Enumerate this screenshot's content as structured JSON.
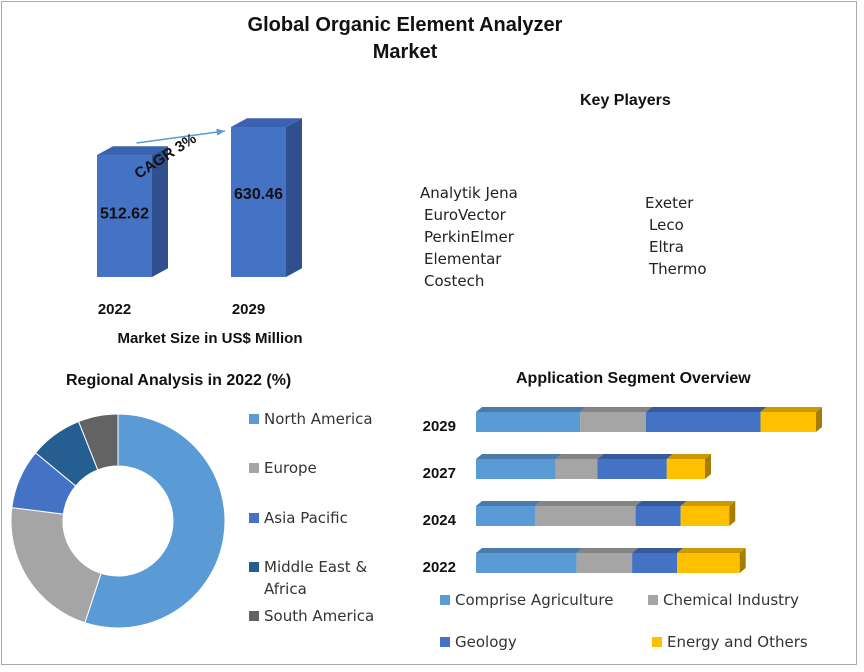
{
  "title": "Global Organic Element Analyzer Market",
  "title_line1": "Global Organic Element Analyzer",
  "title_line2": "Market",
  "colors": {
    "bar_front": "#4472c4",
    "bar_side": "#2f4f8f",
    "bar_top": "#3a62b0",
    "arrow": "#5b9bd5",
    "comprise_agriculture": "#5b9bd5",
    "chemical_industry": "#a5a5a5",
    "geology": "#4472c4",
    "energy_and_others": "#ffc000",
    "north_america": "#5b9bd5",
    "europe": "#a5a5a5",
    "asia_pacific": "#4472c4",
    "middle_east_africa": "#255e91",
    "south_america": "#636363"
  },
  "key_players": {
    "title": "Key Players",
    "left": [
      "Analytik Jena",
      "EuroVector",
      "PerkinElmer",
      "Elementar",
      "Costech"
    ],
    "right": [
      "Exeter",
      "Leco",
      "Eltra",
      "Thermo"
    ]
  },
  "chart_data": [
    {
      "type": "bar",
      "categories": [
        "2022",
        "2029"
      ],
      "values": [
        512.62,
        630.46
      ],
      "data_labels": [
        "512.62",
        "630.46"
      ],
      "annotation": "CAGR 3%",
      "xlabel": "Market Size in US$ Million",
      "ylabel": ""
    },
    {
      "type": "pie",
      "title": "Regional Analysis in 2022 (%)",
      "labels": [
        "North America",
        "Europe",
        "Asia Pacific",
        "Middle East & Africa",
        "South America"
      ],
      "values": [
        55,
        22,
        9,
        8,
        6
      ],
      "donut": true,
      "legend": "right"
    },
    {
      "type": "bar",
      "orientation": "horizontal",
      "stacked": true,
      "title": "Application  Segment Overview",
      "categories": [
        "2029",
        "2027",
        "2024",
        "2022"
      ],
      "series": [
        {
          "name": "Comprise Agriculture",
          "values": [
            30,
            23,
            17,
            29
          ]
        },
        {
          "name": "Chemical Industry",
          "values": [
            19,
            12,
            29,
            16
          ]
        },
        {
          "name": "Geology",
          "values": [
            33,
            20,
            13,
            13
          ]
        },
        {
          "name": "Energy and Others",
          "values": [
            16,
            11,
            14,
            18
          ]
        }
      ],
      "legend": "bottom"
    }
  ]
}
